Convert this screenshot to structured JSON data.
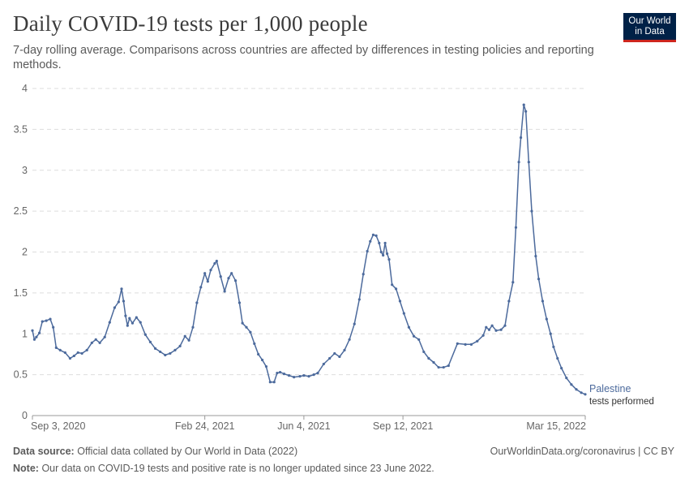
{
  "header": {
    "title": "Daily COVID-19 tests per 1,000 people",
    "subtitle": "7-day rolling average. Comparisons across countries are affected by differences in testing policies and reporting methods."
  },
  "logo": {
    "line1": "Our World",
    "line2": "in Data"
  },
  "footer": {
    "source_label": "Data source:",
    "source_text": "Official data collated by Our World in Data (2022)",
    "url_license": "OurWorldinData.org/coronavirus | CC BY",
    "note_label": "Note:",
    "note_text": "Our data on COVID-19 tests and positive rate is no longer updated since 23 June 2022."
  },
  "colors": {
    "series": "#4c6a9c",
    "grid": "#dddddd",
    "text": "#5b5b5b",
    "logo_bg": "#002147",
    "logo_accent": "#ce261e"
  },
  "chart_data": {
    "type": "line",
    "ylim": [
      0,
      4
    ],
    "yticks": [
      0,
      0.5,
      1,
      1.5,
      2,
      2.5,
      3,
      3.5,
      4
    ],
    "ytick_labels": [
      "0",
      "0.5",
      "1",
      "1.5",
      "2",
      "2.5",
      "3",
      "3.5",
      "4"
    ],
    "xlim": [
      "2020-09-03",
      "2022-03-15"
    ],
    "xticks": [
      {
        "date": "2020-09-03",
        "label": "Sep 3, 2020"
      },
      {
        "date": "2021-02-24",
        "label": "Feb 24, 2021"
      },
      {
        "date": "2021-06-04",
        "label": "Jun 4, 2021"
      },
      {
        "date": "2021-09-12",
        "label": "Sep 12, 2021"
      },
      {
        "date": "2022-03-15",
        "label": "Mar 15, 2022"
      }
    ],
    "grid": "horizontal dashed",
    "series": [
      {
        "name": "Palestine",
        "label_line2": "tests performed",
        "points": [
          [
            "2020-09-03",
            1.04
          ],
          [
            "2020-09-05",
            0.93
          ],
          [
            "2020-09-07",
            0.96
          ],
          [
            "2020-09-10",
            1.01
          ],
          [
            "2020-09-13",
            1.15
          ],
          [
            "2020-09-17",
            1.16
          ],
          [
            "2020-09-21",
            1.18
          ],
          [
            "2020-09-24",
            1.08
          ],
          [
            "2020-09-27",
            0.83
          ],
          [
            "2020-10-01",
            0.8
          ],
          [
            "2020-10-06",
            0.77
          ],
          [
            "2020-10-11",
            0.7
          ],
          [
            "2020-10-15",
            0.73
          ],
          [
            "2020-10-19",
            0.77
          ],
          [
            "2020-10-23",
            0.76
          ],
          [
            "2020-10-28",
            0.8
          ],
          [
            "2020-11-02",
            0.89
          ],
          [
            "2020-11-06",
            0.93
          ],
          [
            "2020-11-10",
            0.89
          ],
          [
            "2020-11-15",
            0.96
          ],
          [
            "2020-11-20",
            1.14
          ],
          [
            "2020-11-25",
            1.32
          ],
          [
            "2020-11-29",
            1.39
          ],
          [
            "2020-12-02",
            1.55
          ],
          [
            "2020-12-04",
            1.4
          ],
          [
            "2020-12-06",
            1.22
          ],
          [
            "2020-12-08",
            1.1
          ],
          [
            "2020-12-10",
            1.19
          ],
          [
            "2020-12-13",
            1.13
          ],
          [
            "2020-12-17",
            1.2
          ],
          [
            "2020-12-21",
            1.14
          ],
          [
            "2020-12-26",
            0.99
          ],
          [
            "2020-12-31",
            0.9
          ],
          [
            "2021-01-05",
            0.82
          ],
          [
            "2021-01-10",
            0.78
          ],
          [
            "2021-01-15",
            0.74
          ],
          [
            "2021-01-20",
            0.76
          ],
          [
            "2021-01-25",
            0.8
          ],
          [
            "2021-01-30",
            0.85
          ],
          [
            "2021-02-04",
            0.97
          ],
          [
            "2021-02-08",
            0.92
          ],
          [
            "2021-02-12",
            1.08
          ],
          [
            "2021-02-16",
            1.38
          ],
          [
            "2021-02-20",
            1.57
          ],
          [
            "2021-02-24",
            1.74
          ],
          [
            "2021-02-27",
            1.64
          ],
          [
            "2021-03-02",
            1.78
          ],
          [
            "2021-03-06",
            1.86
          ],
          [
            "2021-03-08",
            1.89
          ],
          [
            "2021-03-12",
            1.7
          ],
          [
            "2021-03-16",
            1.52
          ],
          [
            "2021-03-20",
            1.68
          ],
          [
            "2021-03-23",
            1.74
          ],
          [
            "2021-03-27",
            1.65
          ],
          [
            "2021-03-31",
            1.38
          ],
          [
            "2021-04-03",
            1.13
          ],
          [
            "2021-04-07",
            1.08
          ],
          [
            "2021-04-11",
            1.02
          ],
          [
            "2021-04-15",
            0.88
          ],
          [
            "2021-04-19",
            0.75
          ],
          [
            "2021-04-23",
            0.68
          ],
          [
            "2021-04-27",
            0.6
          ],
          [
            "2021-05-01",
            0.41
          ],
          [
            "2021-05-05",
            0.41
          ],
          [
            "2021-05-08",
            0.52
          ],
          [
            "2021-05-11",
            0.53
          ],
          [
            "2021-05-15",
            0.51
          ],
          [
            "2021-05-20",
            0.49
          ],
          [
            "2021-05-25",
            0.47
          ],
          [
            "2021-05-31",
            0.48
          ],
          [
            "2021-06-04",
            0.49
          ],
          [
            "2021-06-09",
            0.48
          ],
          [
            "2021-06-14",
            0.5
          ],
          [
            "2021-06-18",
            0.52
          ],
          [
            "2021-06-24",
            0.63
          ],
          [
            "2021-06-30",
            0.7
          ],
          [
            "2021-07-05",
            0.76
          ],
          [
            "2021-07-10",
            0.72
          ],
          [
            "2021-07-15",
            0.8
          ],
          [
            "2021-07-20",
            0.93
          ],
          [
            "2021-07-25",
            1.12
          ],
          [
            "2021-07-30",
            1.42
          ],
          [
            "2021-08-03",
            1.73
          ],
          [
            "2021-08-07",
            2.01
          ],
          [
            "2021-08-10",
            2.13
          ],
          [
            "2021-08-13",
            2.21
          ],
          [
            "2021-08-16",
            2.2
          ],
          [
            "2021-08-19",
            2.11
          ],
          [
            "2021-08-21",
            2.0
          ],
          [
            "2021-08-23",
            1.96
          ],
          [
            "2021-08-25",
            2.11
          ],
          [
            "2021-08-27",
            1.98
          ],
          [
            "2021-08-29",
            1.91
          ],
          [
            "2021-09-01",
            1.6
          ],
          [
            "2021-09-05",
            1.55
          ],
          [
            "2021-09-09",
            1.4
          ],
          [
            "2021-09-13",
            1.25
          ],
          [
            "2021-09-18",
            1.08
          ],
          [
            "2021-09-23",
            0.97
          ],
          [
            "2021-09-28",
            0.93
          ],
          [
            "2021-10-03",
            0.78
          ],
          [
            "2021-10-08",
            0.7
          ],
          [
            "2021-10-13",
            0.65
          ],
          [
            "2021-10-18",
            0.59
          ],
          [
            "2021-10-23",
            0.59
          ],
          [
            "2021-10-28",
            0.61
          ],
          [
            "2021-11-06",
            0.88
          ],
          [
            "2021-11-14",
            0.87
          ],
          [
            "2021-11-20",
            0.87
          ],
          [
            "2021-11-26",
            0.91
          ],
          [
            "2021-12-02",
            0.98
          ],
          [
            "2021-12-05",
            1.08
          ],
          [
            "2021-12-08",
            1.05
          ],
          [
            "2021-12-11",
            1.1
          ],
          [
            "2021-12-15",
            1.04
          ],
          [
            "2021-12-20",
            1.05
          ],
          [
            "2021-12-24",
            1.1
          ],
          [
            "2021-12-28",
            1.4
          ],
          [
            "2022-01-01",
            1.63
          ],
          [
            "2022-01-04",
            2.3
          ],
          [
            "2022-01-07",
            3.1
          ],
          [
            "2022-01-09",
            3.4
          ],
          [
            "2022-01-12",
            3.8
          ],
          [
            "2022-01-14",
            3.72
          ],
          [
            "2022-01-17",
            3.1
          ],
          [
            "2022-01-20",
            2.5
          ],
          [
            "2022-01-24",
            1.95
          ],
          [
            "2022-01-27",
            1.67
          ],
          [
            "2022-01-31",
            1.4
          ],
          [
            "2022-02-04",
            1.18
          ],
          [
            "2022-02-08",
            1.0
          ],
          [
            "2022-02-11",
            0.84
          ],
          [
            "2022-02-15",
            0.7
          ],
          [
            "2022-02-19",
            0.58
          ],
          [
            "2022-02-24",
            0.46
          ],
          [
            "2022-03-01",
            0.38
          ],
          [
            "2022-03-06",
            0.32
          ],
          [
            "2022-03-11",
            0.28
          ],
          [
            "2022-03-15",
            0.26
          ]
        ]
      }
    ]
  }
}
